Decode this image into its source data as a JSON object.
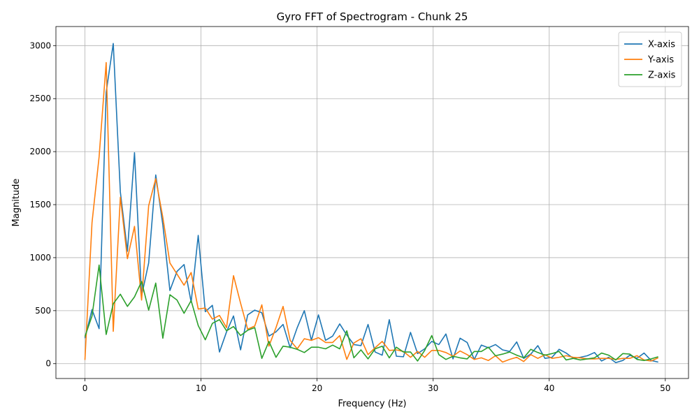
{
  "chart_data": {
    "type": "line",
    "title": "Gyro FFT of Spectrogram - Chunk 25",
    "xlabel": "Frequency (Hz)",
    "ylabel": "Magnitude",
    "xlim": [
      -2.5,
      52
    ],
    "ylim": [
      -140,
      3180
    ],
    "xticks": [
      0,
      10,
      20,
      30,
      40,
      50
    ],
    "yticks": [
      0,
      500,
      1000,
      1500,
      2000,
      2500,
      3000
    ],
    "grid": true,
    "legend_position": "top-right",
    "x": [
      0.0,
      0.61,
      1.22,
      1.83,
      2.44,
      3.05,
      3.66,
      4.27,
      4.88,
      5.49,
      6.1,
      6.71,
      7.32,
      7.93,
      8.54,
      9.15,
      9.76,
      10.37,
      10.98,
      11.59,
      12.2,
      12.8,
      13.41,
      14.02,
      14.63,
      15.24,
      15.85,
      16.46,
      17.07,
      17.68,
      18.29,
      18.9,
      19.51,
      20.12,
      20.73,
      21.34,
      21.95,
      22.56,
      23.17,
      23.78,
      24.39,
      25.0,
      25.61,
      26.22,
      26.83,
      27.44,
      28.05,
      28.66,
      29.27,
      29.88,
      30.49,
      31.1,
      31.71,
      32.32,
      32.93,
      33.54,
      34.15,
      34.76,
      35.37,
      35.98,
      36.59,
      37.2,
      37.8,
      38.41,
      39.02,
      39.63,
      40.24,
      40.85,
      41.46,
      42.07,
      42.68,
      43.29,
      43.9,
      44.51,
      45.12,
      45.73,
      46.34,
      46.95,
      47.56,
      48.17,
      48.78,
      49.39
    ],
    "series": [
      {
        "name": "X-axis",
        "color": "#1f77b4",
        "values": [
          240,
          510,
          330,
          2560,
          3020,
          1620,
          1060,
          1990,
          640,
          950,
          1780,
          1310,
          690,
          870,
          935,
          580,
          1210,
          490,
          550,
          110,
          300,
          450,
          130,
          460,
          505,
          480,
          260,
          300,
          370,
          150,
          340,
          500,
          220,
          460,
          220,
          260,
          375,
          270,
          180,
          170,
          370,
          110,
          80,
          415,
          70,
          65,
          295,
          95,
          140,
          210,
          180,
          280,
          45,
          240,
          200,
          40,
          175,
          150,
          180,
          130,
          115,
          205,
          50,
          90,
          170,
          50,
          60,
          135,
          100,
          50,
          60,
          75,
          105,
          25,
          60,
          10,
          30,
          80,
          50,
          100,
          30,
          15
        ]
      },
      {
        "name": "Y-axis",
        "color": "#ff7f0e",
        "values": [
          35,
          1330,
          1950,
          2840,
          305,
          1570,
          990,
          1295,
          600,
          1490,
          1745,
          1380,
          950,
          845,
          740,
          860,
          515,
          525,
          420,
          455,
          340,
          830,
          570,
          325,
          355,
          555,
          165,
          340,
          540,
          220,
          140,
          235,
          220,
          245,
          200,
          200,
          265,
          40,
          195,
          235,
          85,
          150,
          210,
          125,
          130,
          115,
          60,
          115,
          60,
          125,
          125,
          105,
          70,
          120,
          85,
          40,
          55,
          30,
          75,
          15,
          40,
          60,
          20,
          85,
          50,
          85,
          50,
          60,
          75,
          60,
          55,
          45,
          45,
          50,
          50,
          40,
          50,
          50,
          75,
          35,
          25,
          55
        ]
      },
      {
        "name": "Z-axis",
        "color": "#2ca02c",
        "values": [
          255,
          450,
          930,
          275,
          565,
          655,
          540,
          630,
          775,
          505,
          760,
          240,
          650,
          600,
          475,
          595,
          360,
          225,
          380,
          415,
          310,
          350,
          265,
          315,
          340,
          50,
          210,
          60,
          165,
          155,
          135,
          105,
          155,
          155,
          140,
          175,
          140,
          310,
          55,
          130,
          45,
          140,
          165,
          55,
          155,
          110,
          110,
          25,
          125,
          265,
          85,
          40,
          70,
          55,
          45,
          115,
          115,
          155,
          75,
          90,
          110,
          80,
          55,
          135,
          105,
          80,
          95,
          115,
          35,
          50,
          35,
          45,
          55,
          100,
          80,
          35,
          95,
          90,
          40,
          30,
          45,
          65
        ]
      }
    ]
  }
}
